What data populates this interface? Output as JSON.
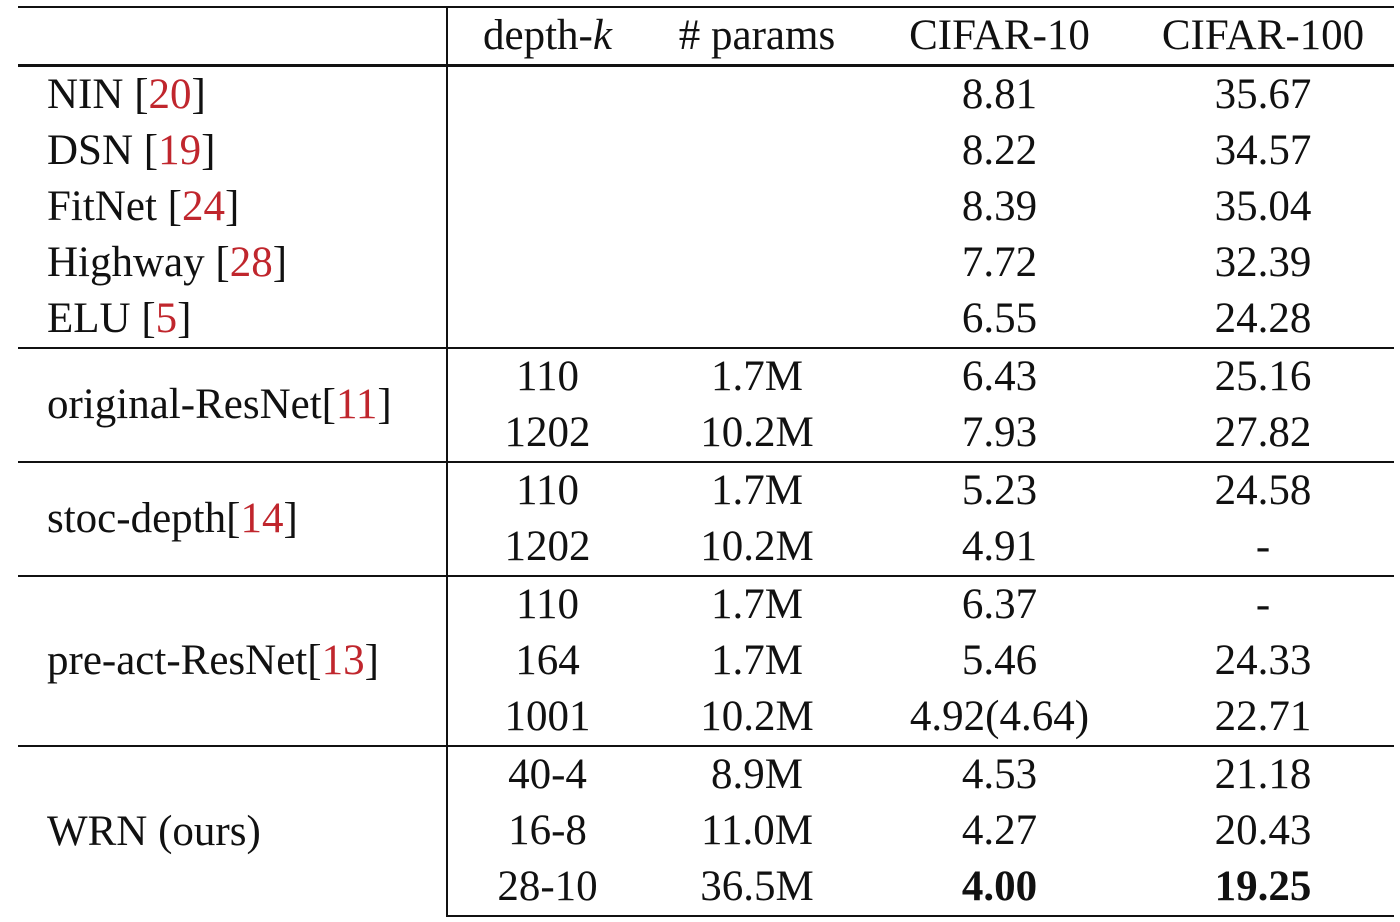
{
  "table": {
    "columns": {
      "method": "",
      "depth": "depth-",
      "depth_suffix": "k",
      "params": "# params",
      "cifar10": "CIFAR-10",
      "cifar100": "CIFAR-100"
    },
    "baselines": [
      {
        "name": "NIN ",
        "cite": "20",
        "cifar10": "8.81",
        "cifar100": "35.67"
      },
      {
        "name": "DSN ",
        "cite": "19",
        "cifar10": "8.22",
        "cifar100": "34.57"
      },
      {
        "name": "FitNet ",
        "cite": "24",
        "cifar10": "8.39",
        "cifar100": "35.04"
      },
      {
        "name": "Highway ",
        "cite": "28",
        "cifar10": "7.72",
        "cifar100": "32.39"
      },
      {
        "name": "ELU ",
        "cite": "5",
        "cifar10": "6.55",
        "cifar100": "24.28"
      }
    ],
    "groups": [
      {
        "name": "original-ResNet",
        "cite": "11",
        "rows": [
          {
            "depth": "110",
            "params": "1.7M",
            "cifar10": "6.43",
            "cifar100": "25.16"
          },
          {
            "depth": "1202",
            "params": "10.2M",
            "cifar10": "7.93",
            "cifar100": "27.82"
          }
        ]
      },
      {
        "name": "stoc-depth",
        "cite": "14",
        "rows": [
          {
            "depth": "110",
            "params": "1.7M",
            "cifar10": "5.23",
            "cifar100": "24.58"
          },
          {
            "depth": "1202",
            "params": "10.2M",
            "cifar10": "4.91",
            "cifar100": "-"
          }
        ]
      },
      {
        "name": "pre-act-ResNet",
        "cite": "13",
        "rows": [
          {
            "depth": "110",
            "params": "1.7M",
            "cifar10": "6.37",
            "cifar100": "-"
          },
          {
            "depth": "164",
            "params": "1.7M",
            "cifar10": "5.46",
            "cifar100": "24.33"
          },
          {
            "depth": "1001",
            "params": "10.2M",
            "cifar10": "4.92(4.64)",
            "cifar100": "22.71"
          }
        ]
      },
      {
        "name": "WRN (ours)",
        "rows": [
          {
            "depth": "40-4",
            "params": "8.9M",
            "cifar10": "4.53",
            "cifar100": "21.18"
          },
          {
            "depth": "16-8",
            "params": "11.0M",
            "cifar10": "4.27",
            "cifar100": "20.43"
          },
          {
            "depth": "28-10",
            "params": "36.5M",
            "cifar10": "4.00",
            "cifar100": "19.25"
          }
        ]
      }
    ],
    "styles": {
      "citation_color": "#c0262d",
      "bold_best": [
        "4.00",
        "19.25"
      ]
    }
  }
}
